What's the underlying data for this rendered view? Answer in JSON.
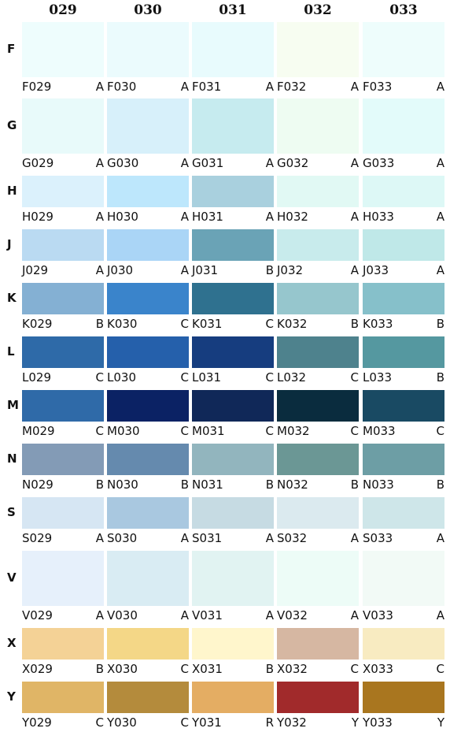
{
  "columns": [
    "029",
    "030",
    "031",
    "032",
    "033"
  ],
  "rows": [
    {
      "label": "F",
      "cells": [
        {
          "code": "F029",
          "grade": "A",
          "color": "#eefdfd"
        },
        {
          "code": "F030",
          "grade": "A",
          "color": "#ebfbfd"
        },
        {
          "code": "F031",
          "grade": "A",
          "color": "#e8fbfd"
        },
        {
          "code": "F032",
          "grade": "A",
          "color": "#f7fdf1"
        },
        {
          "code": "F033",
          "grade": "A",
          "color": "#eefdfc"
        }
      ]
    },
    {
      "label": "G",
      "cells": [
        {
          "code": "G029",
          "grade": "A",
          "color": "#e8fafa"
        },
        {
          "code": "G030",
          "grade": "A",
          "color": "#d7f0fa"
        },
        {
          "code": "G031",
          "grade": "A",
          "color": "#c6ebef"
        },
        {
          "code": "G032",
          "grade": "A",
          "color": "#eefcf2"
        },
        {
          "code": "G033",
          "grade": "A",
          "color": "#e3fbfa"
        }
      ]
    },
    {
      "label": "H",
      "cells": [
        {
          "code": "H029",
          "grade": "A",
          "color": "#dbf1fc"
        },
        {
          "code": "H030",
          "grade": "A",
          "color": "#bde7fc"
        },
        {
          "code": "H031",
          "grade": "A",
          "color": "#a9d0de"
        },
        {
          "code": "H032",
          "grade": "A",
          "color": "#e1f9f4"
        },
        {
          "code": "H033",
          "grade": "A",
          "color": "#ddf8f6"
        }
      ]
    },
    {
      "label": "J",
      "cells": [
        {
          "code": "J029",
          "grade": "A",
          "color": "#badaf2"
        },
        {
          "code": "J030",
          "grade": "A",
          "color": "#aad5f6"
        },
        {
          "code": "J031",
          "grade": "B",
          "color": "#6aa3b6"
        },
        {
          "code": "J032",
          "grade": "A",
          "color": "#c8ebec"
        },
        {
          "code": "J033",
          "grade": "A",
          "color": "#bfe8e8"
        }
      ]
    },
    {
      "label": "K",
      "cells": [
        {
          "code": "K029",
          "grade": "B",
          "color": "#84b0d3"
        },
        {
          "code": "K030",
          "grade": "C",
          "color": "#3a84cb"
        },
        {
          "code": "K031",
          "grade": "C",
          "color": "#2f718f"
        },
        {
          "code": "K032",
          "grade": "B",
          "color": "#96c6cd"
        },
        {
          "code": "K033",
          "grade": "B",
          "color": "#86c0ca"
        }
      ]
    },
    {
      "label": "L",
      "cells": [
        {
          "code": "L029",
          "grade": "C",
          "color": "#2e6aa8"
        },
        {
          "code": "L030",
          "grade": "C",
          "color": "#2560ab"
        },
        {
          "code": "L031",
          "grade": "C",
          "color": "#163d7f"
        },
        {
          "code": "L032",
          "grade": "C",
          "color": "#4e828d"
        },
        {
          "code": "L033",
          "grade": "B",
          "color": "#5598a0"
        }
      ]
    },
    {
      "label": "M",
      "cells": [
        {
          "code": "M029",
          "grade": "C",
          "color": "#2f6aa8"
        },
        {
          "code": "M030",
          "grade": "C",
          "color": "#0b2264"
        },
        {
          "code": "M031",
          "grade": "C",
          "color": "#102858"
        },
        {
          "code": "M032",
          "grade": "C",
          "color": "#0a2c3e"
        },
        {
          "code": "M033",
          "grade": "C",
          "color": "#194a63"
        }
      ]
    },
    {
      "label": "N",
      "cells": [
        {
          "code": "N029",
          "grade": "B",
          "color": "#839bb6"
        },
        {
          "code": "N030",
          "grade": "B",
          "color": "#658aae"
        },
        {
          "code": "N031",
          "grade": "B",
          "color": "#92b5be"
        },
        {
          "code": "N032",
          "grade": "B",
          "color": "#6b9795"
        },
        {
          "code": "N033",
          "grade": "B",
          "color": "#6d9ea5"
        }
      ]
    },
    {
      "label": "S",
      "cells": [
        {
          "code": "S029",
          "grade": "A",
          "color": "#d6e6f3"
        },
        {
          "code": "S030",
          "grade": "A",
          "color": "#a9c8e0"
        },
        {
          "code": "S031",
          "grade": "A",
          "color": "#c6dbe3"
        },
        {
          "code": "S032",
          "grade": "A",
          "color": "#dbeaef"
        },
        {
          "code": "S033",
          "grade": "A",
          "color": "#cee6e9"
        }
      ]
    },
    {
      "label": "V",
      "cells": [
        {
          "code": "V029",
          "grade": "A",
          "color": "#e6f0fb"
        },
        {
          "code": "V030",
          "grade": "A",
          "color": "#d9ecf3"
        },
        {
          "code": "V031",
          "grade": "A",
          "color": "#e1f3f2"
        },
        {
          "code": "V032",
          "grade": "A",
          "color": "#edfcf7"
        },
        {
          "code": "V033",
          "grade": "A",
          "color": "#f2faf6"
        }
      ]
    },
    {
      "label": "X",
      "cells": [
        {
          "code": "X029",
          "grade": "B",
          "color": "#f4d296"
        },
        {
          "code": "X030",
          "grade": "C",
          "color": "#f4d787"
        },
        {
          "code": "X031",
          "grade": "B",
          "color": "#fff6cc"
        },
        {
          "code": "X032",
          "grade": "C",
          "color": "#d6b7a2"
        },
        {
          "code": "X033",
          "grade": "C",
          "color": "#f8ebc1"
        }
      ]
    },
    {
      "label": "Y",
      "cells": [
        {
          "code": "Y029",
          "grade": "C",
          "color": "#e0b566"
        },
        {
          "code": "Y030",
          "grade": "C",
          "color": "#b48b3c"
        },
        {
          "code": "Y031",
          "grade": "R",
          "color": "#e4ad63"
        },
        {
          "code": "Y032",
          "grade": "Y",
          "color": "#a12a2b"
        },
        {
          "code": "Y033",
          "grade": "Y",
          "color": "#a9761f"
        }
      ]
    }
  ]
}
